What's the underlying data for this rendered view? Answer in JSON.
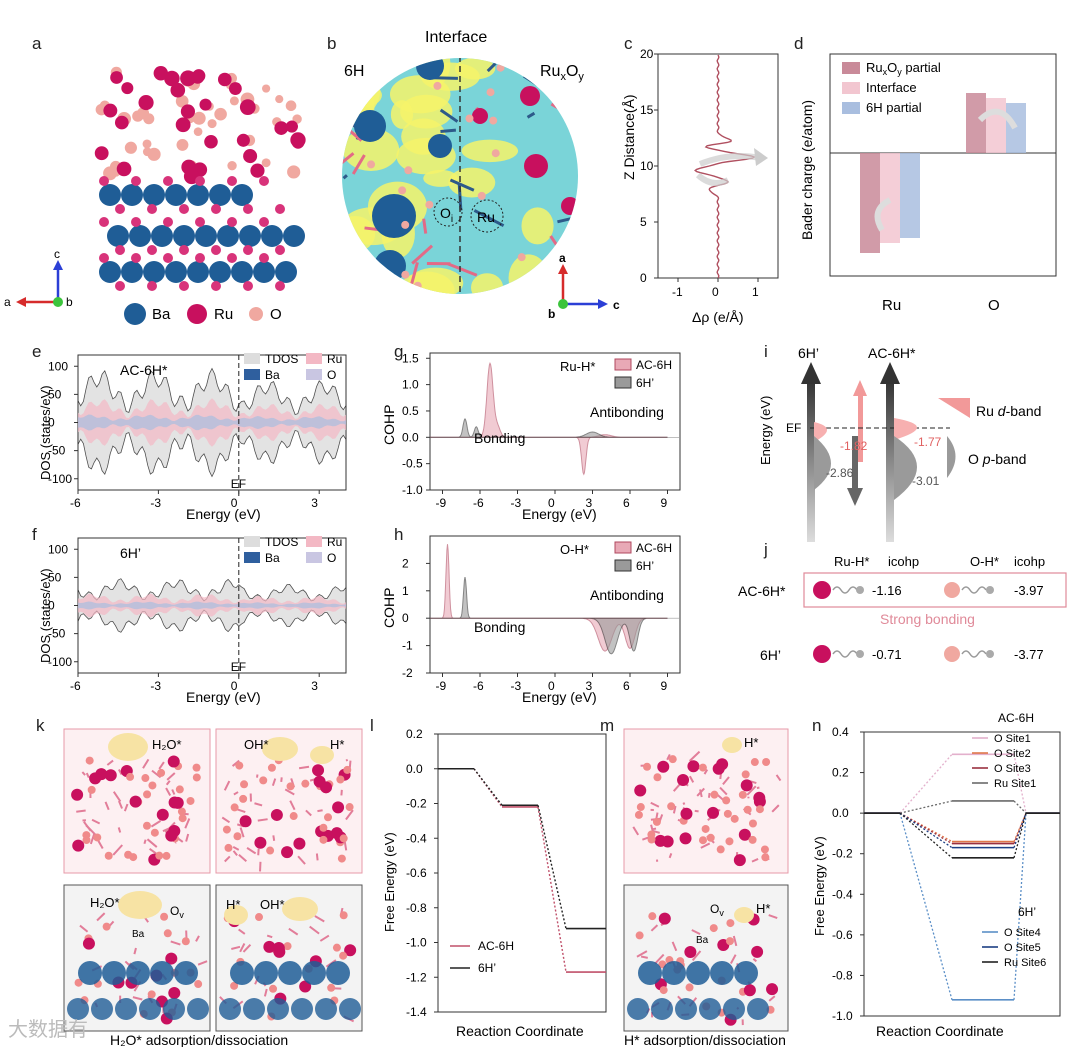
{
  "panel_letters": {
    "a": "a",
    "b": "b",
    "c": "c",
    "d": "d",
    "e": "e",
    "f": "f",
    "g": "g",
    "h": "h",
    "i": "i",
    "j": "j",
    "k": "k",
    "l": "l",
    "m": "m",
    "n": "n"
  },
  "panel_a": {
    "legend": [
      "Ba",
      "Ru",
      "O"
    ],
    "axes": {
      "c": "c",
      "a": "a",
      "b": "b"
    }
  },
  "panel_b": {
    "title": "Interface",
    "left": "6H",
    "right_base": "Ru",
    "right_sub1": "x",
    "right_mid": "O",
    "right_sub2": "y",
    "marker_o": "O",
    "marker_o_sub": "i",
    "marker_ru": "Ru",
    "axes": {
      "a": "a",
      "b": "b",
      "c": "c"
    }
  },
  "panel_c": {
    "ylabel": "Z Distance(Å)",
    "xlabel": "Δρ (e/Å)",
    "yticks": [
      "0",
      "5",
      "10",
      "15",
      "20"
    ],
    "xticks": [
      "-1",
      "0",
      "1"
    ]
  },
  "panel_d": {
    "ylabel": "Bader charge (e/atom)",
    "categories": [
      "Ru",
      "O"
    ],
    "legend": [
      {
        "base": "Ru",
        "s1": "x",
        "mid": "O",
        "s2": "y",
        "tail": " partial"
      },
      {
        "label": "Interface"
      },
      {
        "label": "6H partial"
      }
    ],
    "colors": [
      "#c98a99",
      "#f2c6d0",
      "#a9bedf"
    ]
  },
  "panel_e": {
    "title": "AC-6H*",
    "ylabel": "DOS (states/eV)",
    "xlabel": "Energy (eV)",
    "ef": "EF",
    "yticks": [
      "100",
      "50",
      "0",
      "-50",
      "-100"
    ],
    "xticks": [
      "-6",
      "-3",
      "0",
      "3"
    ],
    "legend": [
      "TDOS",
      "Ru",
      "Ba",
      "O"
    ]
  },
  "panel_f": {
    "title": "6H’",
    "ylabel": "DOS (states/eV)",
    "xlabel": "Energy (eV)",
    "ef": "EF",
    "yticks": [
      "100",
      "50",
      "0",
      "-50",
      "-100"
    ],
    "xticks": [
      "-6",
      "-3",
      "0",
      "3"
    ],
    "legend": [
      "TDOS",
      "Ru",
      "Ba",
      "O"
    ]
  },
  "panel_g": {
    "title": "Ru-H*",
    "ylabel": "COHP",
    "xlabel": "Energy (eV)",
    "anti": "Antibonding",
    "bond": "Bonding",
    "yticks": [
      "1.5",
      "1.0",
      "0.5",
      "0.0",
      "-0.5",
      "-1.0"
    ],
    "xticks": [
      "-9",
      "-6",
      "-3",
      "0",
      "3",
      "6",
      "9"
    ],
    "legend": [
      "AC-6H",
      "6H’"
    ]
  },
  "panel_h": {
    "title": "O-H*",
    "ylabel": "COHP",
    "xlabel": "Energy (eV)",
    "anti": "Antibonding",
    "bond": "Bonding",
    "yticks": [
      "2",
      "1",
      "0",
      "-1",
      "-2"
    ],
    "xticks": [
      "-9",
      "-6",
      "-3",
      "0",
      "3",
      "6",
      "9"
    ],
    "legend": [
      "AC-6H",
      "6H’"
    ]
  },
  "panel_i": {
    "ylabel": "Energy (eV)",
    "left": "6H’",
    "right": "AC-6H*",
    "ef": "EF",
    "ru_band": "Ru ",
    "ru_band_italic": "d",
    "ru_band_tail": "-band",
    "o_band": "O ",
    "o_band_italic": "p",
    "o_band_tail": "-band",
    "values": [
      "-1.82",
      "-1.77",
      "-2.86",
      "-3.01"
    ]
  },
  "panel_j": {
    "head1": "Ru-H*",
    "head2": "icohp",
    "head3": "O-H*",
    "head4": "icohp",
    "rows": [
      {
        "name": "AC-6H*",
        "ru": "-1.16",
        "o": "-3.97"
      },
      {
        "name": "6H’",
        "ru": "-0.71",
        "o": "-3.77"
      }
    ],
    "strong": "Strong bonding"
  },
  "panel_k": {
    "caption": "H₂O* adsorption/dissociation",
    "tl": "H₂O*",
    "tr1": "OH*",
    "tr2": "H*",
    "bl1": "H₂O*",
    "bl2": "O",
    "bl2sub": "v",
    "bl3": "Ba",
    "br1": "H*",
    "br2": "OH*"
  },
  "panel_l": {
    "ylabel": "Free Energy (eV)",
    "xlabel": "Reaction Coordinate",
    "yticks": [
      "0.2",
      "0.0",
      "-0.2",
      "-0.4",
      "-0.6",
      "-0.8",
      "-1.0",
      "-1.2",
      "-1.4"
    ],
    "legend": [
      "AC-6H",
      "6H’"
    ]
  },
  "panel_m": {
    "caption": "H* adsorption/dissociation",
    "top": "H*",
    "bot1": "O",
    "bot1sub": "v",
    "bot2": "H*",
    "bot3": "Ba"
  },
  "panel_n": {
    "ylabel": "Free Energy (eV)",
    "xlabel": "Reaction Coordinate",
    "yticks": [
      "0.4",
      "0.2",
      "0.0",
      "-0.2",
      "-0.4",
      "-0.6",
      "-0.8",
      "-1.0"
    ],
    "group1": "AC-6H",
    "group2": "6H’",
    "legend1": [
      "O  Site1",
      "O  Site2",
      "O  Site3",
      "Ru Site1"
    ],
    "legend2": [
      "O  Site4",
      "O  Site5",
      "Ru Site6"
    ]
  },
  "watermark": "大数据有",
  "chart_data": [
    {
      "type": "bar",
      "id": "d",
      "title": "Bader charge",
      "ylabel": "Bader charge (e/atom)",
      "categories": [
        "Ru",
        "O"
      ],
      "series": [
        {
          "name": "RuxOy partial",
          "values": [
            -1.0,
            0.6
          ]
        },
        {
          "name": "Interface",
          "values": [
            -0.9,
            0.55
          ]
        },
        {
          "name": "6H partial",
          "values": [
            -0.85,
            0.5
          ]
        }
      ]
    },
    {
      "type": "line",
      "id": "l",
      "ylabel": "Free Energy (eV)",
      "xlabel": "Reaction Coordinate",
      "ylim": [
        -1.4,
        0.2
      ],
      "series": [
        {
          "name": "AC-6H",
          "color": "#c0506a",
          "values": [
            0.0,
            -0.22,
            -1.17
          ]
        },
        {
          "name": "6H’",
          "color": "#222222",
          "values": [
            0.0,
            -0.21,
            -0.92
          ]
        }
      ]
    },
    {
      "type": "line",
      "id": "n",
      "ylabel": "Free Energy (eV)",
      "xlabel": "Reaction Coordinate",
      "ylim": [
        -1.0,
        0.4
      ],
      "series": [
        {
          "name": "O Site1",
          "color": "#e3b0cc",
          "values": [
            0,
            0.29,
            0
          ]
        },
        {
          "name": "O Site2",
          "color": "#e0784a",
          "values": [
            0,
            -0.14,
            0
          ]
        },
        {
          "name": "O Site3",
          "color": "#9a3040",
          "values": [
            0,
            -0.15,
            0
          ]
        },
        {
          "name": "Ru Site1",
          "color": "#6a6a6a",
          "values": [
            0,
            0.06,
            0
          ]
        },
        {
          "name": "O Site4",
          "color": "#5b8fc7",
          "values": [
            0,
            -0.92,
            0
          ]
        },
        {
          "name": "O Site5",
          "color": "#1d3f84",
          "values": [
            0,
            -0.17,
            0
          ]
        },
        {
          "name": "Ru Site6",
          "color": "#222222",
          "values": [
            0,
            -0.22,
            0
          ]
        }
      ]
    },
    {
      "type": "bar",
      "id": "j",
      "title": "icohp",
      "categories": [
        "AC-6H*",
        "6H’"
      ],
      "series": [
        {
          "name": "Ru-H*",
          "values": [
            -1.16,
            -0.71
          ]
        },
        {
          "name": "O-H*",
          "values": [
            -3.97,
            -3.77
          ]
        }
      ]
    }
  ]
}
